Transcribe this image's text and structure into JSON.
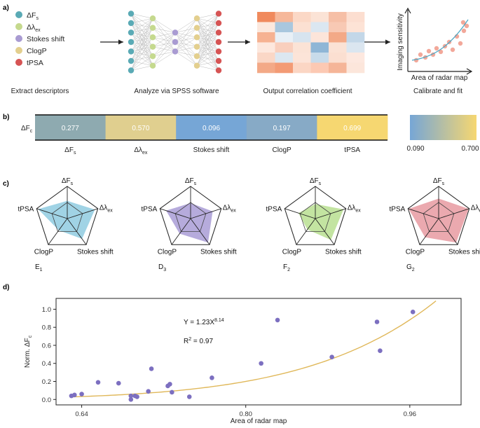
{
  "panels": {
    "a": "a)",
    "b": "b)",
    "c": "c)",
    "d": "d)"
  },
  "a": {
    "legend": [
      {
        "label": "ΔF",
        "sub": "s",
        "color": "#5aaab5"
      },
      {
        "label": "Δλ",
        "sub": "ex",
        "color": "#c5d98e"
      },
      {
        "label": "Stokes shift",
        "sub": "",
        "color": "#a99bd2"
      },
      {
        "label": "ClogP",
        "sub": "",
        "color": "#e3cf8e"
      },
      {
        "label": "tPSA",
        "sub": "",
        "color": "#d65454"
      }
    ],
    "captions": [
      "Extract descriptors",
      "Analyze via SPSS software",
      "Output correlation coefficient",
      "Calibrate and fit"
    ],
    "fit_xlabel": "Area of radar map",
    "fit_ylabel": "Imaging sensitivity"
  },
  "b": {
    "row_label": "ΔF",
    "row_sub": "c",
    "cells": [
      {
        "value": "0.277",
        "label": "ΔF",
        "sub": "s",
        "color": "#8eaab0"
      },
      {
        "value": "0.570",
        "label": "Δλ",
        "sub": "ex",
        "color": "#e0cf8f"
      },
      {
        "value": "0.096",
        "label": "Stokes shift",
        "sub": "",
        "color": "#76a6d6"
      },
      {
        "value": "0.197",
        "label": "ClogP",
        "sub": "",
        "color": "#87aac6"
      },
      {
        "value": "0.699",
        "label": "tPSA",
        "sub": "",
        "color": "#f6d771"
      }
    ],
    "scale_min": "0.090",
    "scale_max": "0.700",
    "scale_colors": [
      "#76a6d6",
      "#f6d771"
    ]
  },
  "c": {
    "axes": [
      {
        "label": "ΔF",
        "sub": "s"
      },
      {
        "label": "Δλ",
        "sub": "ex"
      },
      {
        "label": "Stokes shift",
        "sub": ""
      },
      {
        "label": "ClogP",
        "sub": ""
      },
      {
        "label": "tPSA",
        "sub": ""
      }
    ],
    "radars": [
      {
        "name": "E",
        "sub": "1",
        "color": "#8fcbe0",
        "values": [
          0.55,
          0.9,
          0.78,
          0.45,
          0.95
        ]
      },
      {
        "name": "D",
        "sub": "3",
        "color": "#a99cd6",
        "values": [
          0.48,
          0.72,
          0.92,
          0.58,
          0.8
        ]
      },
      {
        "name": "F",
        "sub": "2",
        "color": "#b9df90",
        "values": [
          0.45,
          0.92,
          0.82,
          0.42,
          0.55
        ]
      },
      {
        "name": "G",
        "sub": "2",
        "color": "#e89aa1",
        "values": [
          0.62,
          0.98,
          0.92,
          0.72,
          0.98
        ]
      }
    ]
  },
  "chart_data": {
    "type": "scatter",
    "title": "",
    "xlabel": "Area of radar map",
    "ylabel": "Norm. ΔF",
    "ylabel_sub": "c",
    "xlim": [
      0.615,
      1.01
    ],
    "ylim": [
      -0.06,
      1.12
    ],
    "xticks": [
      "0.64",
      "0.80",
      "0.96"
    ],
    "yticks": [
      "0.0",
      "0.2",
      "0.4",
      "0.6",
      "0.8",
      "1.0"
    ],
    "equation": "Y = 1.23X",
    "equation_exp": "8.14",
    "r2_label": "R",
    "r2_exp": "2",
    "r2_value": " = 0.97",
    "fit": {
      "a": 1.23,
      "b": 8.14
    },
    "points": [
      {
        "x": 0.63,
        "y": 0.04
      },
      {
        "x": 0.633,
        "y": 0.05
      },
      {
        "x": 0.64,
        "y": 0.06
      },
      {
        "x": 0.656,
        "y": 0.19
      },
      {
        "x": 0.676,
        "y": 0.18
      },
      {
        "x": 0.688,
        "y": 0.04
      },
      {
        "x": 0.688,
        "y": 0.0
      },
      {
        "x": 0.692,
        "y": 0.04
      },
      {
        "x": 0.694,
        "y": 0.03
      },
      {
        "x": 0.705,
        "y": 0.09
      },
      {
        "x": 0.708,
        "y": 0.34
      },
      {
        "x": 0.724,
        "y": 0.15
      },
      {
        "x": 0.726,
        "y": 0.17
      },
      {
        "x": 0.728,
        "y": 0.08
      },
      {
        "x": 0.745,
        "y": 0.03
      },
      {
        "x": 0.767,
        "y": 0.24
      },
      {
        "x": 0.815,
        "y": 0.4
      },
      {
        "x": 0.831,
        "y": 0.88
      },
      {
        "x": 0.884,
        "y": 0.47
      },
      {
        "x": 0.928,
        "y": 0.86
      },
      {
        "x": 0.931,
        "y": 0.54
      },
      {
        "x": 0.963,
        "y": 0.97
      }
    ]
  }
}
